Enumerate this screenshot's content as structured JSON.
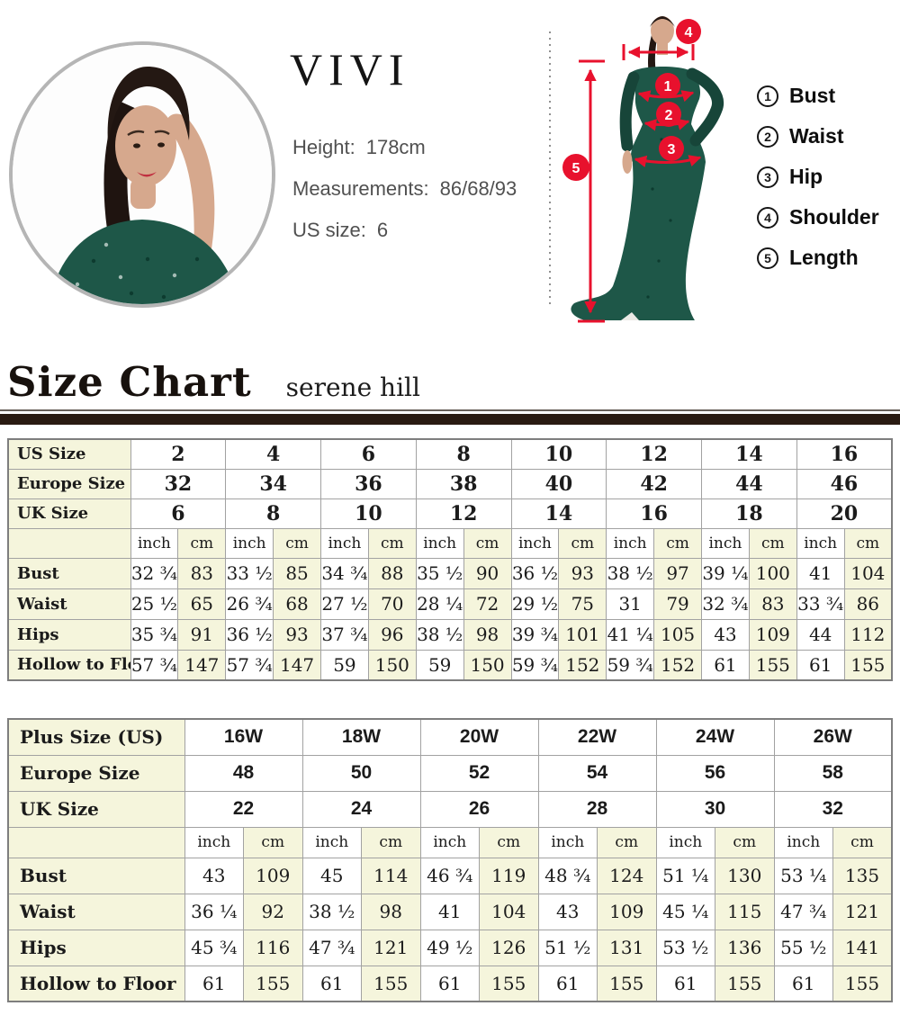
{
  "profile": {
    "brand": "VIVI",
    "info": [
      {
        "label": "Height:",
        "value": "178cm"
      },
      {
        "label": "Measurements:",
        "value": "86/68/93"
      },
      {
        "label": "US size:",
        "value": "6"
      }
    ]
  },
  "diagram": {
    "markers": [
      "1",
      "2",
      "3",
      "4",
      "5"
    ],
    "legend": [
      {
        "num": "1",
        "label": "Bust"
      },
      {
        "num": "2",
        "label": "Waist"
      },
      {
        "num": "3",
        "label": "Hip"
      },
      {
        "num": "4",
        "label": "Shoulder"
      },
      {
        "num": "5",
        "label": "Length"
      }
    ]
  },
  "size_chart": {
    "title": "Size Chart",
    "subtitle": "serene hill"
  },
  "standard_table": {
    "sizes": [
      {
        "label": "US Size",
        "values": [
          "2",
          "4",
          "6",
          "8",
          "10",
          "12",
          "14",
          "16"
        ]
      },
      {
        "label": "Europe Size",
        "values": [
          "32",
          "34",
          "36",
          "38",
          "40",
          "42",
          "44",
          "46"
        ]
      },
      {
        "label": "UK Size",
        "values": [
          "6",
          "8",
          "10",
          "12",
          "14",
          "16",
          "18",
          "20"
        ]
      }
    ],
    "units": {
      "inch": "inch",
      "cm": "cm"
    },
    "measurements": [
      {
        "label": "Bust",
        "inch": [
          "32 ¾",
          "33 ½",
          "34 ¾",
          "35 ½",
          "36 ½",
          "38 ½",
          "39 ¼",
          "41"
        ],
        "cm": [
          "83",
          "85",
          "88",
          "90",
          "93",
          "97",
          "100",
          "104"
        ]
      },
      {
        "label": "Waist",
        "inch": [
          "25 ½",
          "26 ¾",
          "27 ½",
          "28 ¼",
          "29 ½",
          "31",
          "32 ¾",
          "33 ¾"
        ],
        "cm": [
          "65",
          "68",
          "70",
          "72",
          "75",
          "79",
          "83",
          "86"
        ]
      },
      {
        "label": "Hips",
        "inch": [
          "35 ¾",
          "36 ½",
          "37 ¾",
          "38 ½",
          "39 ¾",
          "41 ¼",
          "43",
          "44"
        ],
        "cm": [
          "91",
          "93",
          "96",
          "98",
          "101",
          "105",
          "109",
          "112"
        ]
      },
      {
        "label": "Hollow to Floor",
        "inch": [
          "57 ¾",
          "57 ¾",
          "59",
          "59",
          "59 ¾",
          "59 ¾",
          "61",
          "61"
        ],
        "cm": [
          "147",
          "147",
          "150",
          "150",
          "152",
          "152",
          "155",
          "155"
        ]
      }
    ]
  },
  "plus_table": {
    "sizes": [
      {
        "label": "Plus Size (US)",
        "values": [
          "16W",
          "18W",
          "20W",
          "22W",
          "24W",
          "26W"
        ]
      },
      {
        "label": "Europe Size",
        "values": [
          "48",
          "50",
          "52",
          "54",
          "56",
          "58"
        ]
      },
      {
        "label": "UK Size",
        "values": [
          "22",
          "24",
          "26",
          "28",
          "30",
          "32"
        ]
      }
    ],
    "units": {
      "inch": "inch",
      "cm": "cm"
    },
    "measurements": [
      {
        "label": "Bust",
        "inch": [
          "43",
          "45",
          "46 ¾",
          "48 ¾",
          "51 ¼",
          "53 ¼"
        ],
        "cm": [
          "109",
          "114",
          "119",
          "124",
          "130",
          "135"
        ]
      },
      {
        "label": "Waist",
        "inch": [
          "36 ¼",
          "38 ½",
          "41",
          "43",
          "45 ¼",
          "47 ¾"
        ],
        "cm": [
          "92",
          "98",
          "104",
          "109",
          "115",
          "121"
        ]
      },
      {
        "label": "Hips",
        "inch": [
          "45 ¾",
          "47 ¾",
          "49 ½",
          "51 ½",
          "53 ½",
          "55 ½"
        ],
        "cm": [
          "116",
          "121",
          "126",
          "131",
          "136",
          "141"
        ]
      },
      {
        "label": "Hollow to Floor",
        "inch": [
          "61",
          "61",
          "61",
          "61",
          "61",
          "61"
        ],
        "cm": [
          "155",
          "155",
          "155",
          "155",
          "155",
          "155"
        ]
      }
    ]
  },
  "colors": {
    "accent_red": "#e8112d",
    "dress_green": "#1e5748",
    "cell_cream": "#f5f5dc",
    "divider_dark": "#2a1b12"
  }
}
